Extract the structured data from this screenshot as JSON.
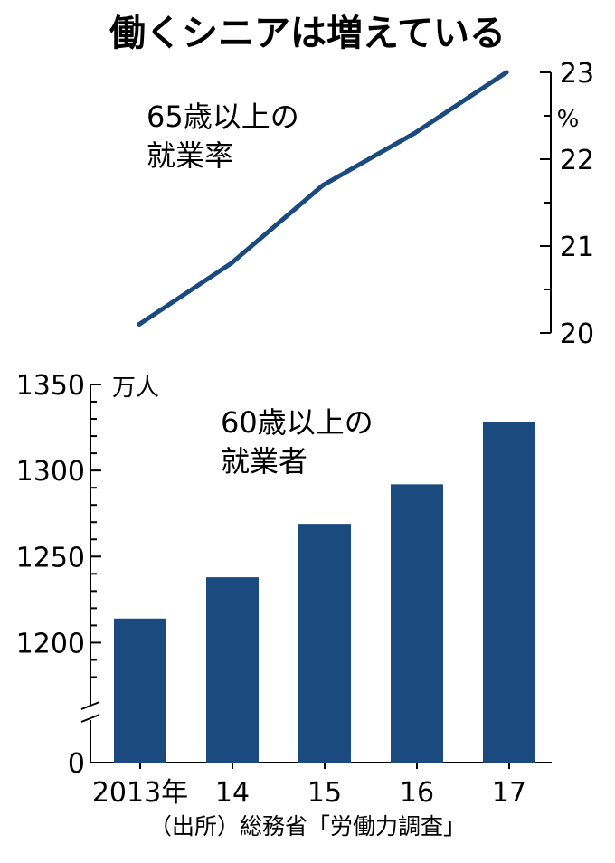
{
  "title": "働くシニアは増えている",
  "source": "（出所）総務省「労働力調査」",
  "colors": {
    "series": "#1b4a7e",
    "axis": "#000000"
  },
  "chart_data": [
    {
      "type": "line",
      "name": "employment-rate-65plus",
      "label_lines": [
        "65歳以上の",
        "就業率"
      ],
      "x": [
        "2013",
        "14",
        "15",
        "16",
        "17"
      ],
      "y": [
        20.1,
        20.8,
        21.7,
        22.3,
        23.0
      ],
      "ylim": [
        20,
        23
      ],
      "yticks": [
        {
          "v": 20,
          "t": "20"
        },
        {
          "v": 21,
          "t": "21"
        },
        {
          "v": 22,
          "t": "22"
        },
        {
          "v": 23,
          "t": "23"
        }
      ],
      "ylabel": "%",
      "grid": false
    },
    {
      "type": "bar",
      "name": "employed-60plus",
      "label_lines": [
        "60歳以上の",
        "就業者"
      ],
      "categories": [
        "2013年",
        "14",
        "15",
        "16",
        "17"
      ],
      "values": [
        1214,
        1238,
        1269,
        1292,
        1328
      ],
      "ylim": [
        1175,
        1350
      ],
      "axis_break": true,
      "yticks": [
        {
          "v": 1350,
          "t": "1350"
        },
        {
          "v": 1300,
          "t": "1300"
        },
        {
          "v": 1250,
          "t": "1250"
        },
        {
          "v": 1200,
          "t": "1200"
        },
        {
          "v": 0,
          "t": "0"
        }
      ],
      "ylabel": "万人",
      "grid": false
    }
  ]
}
